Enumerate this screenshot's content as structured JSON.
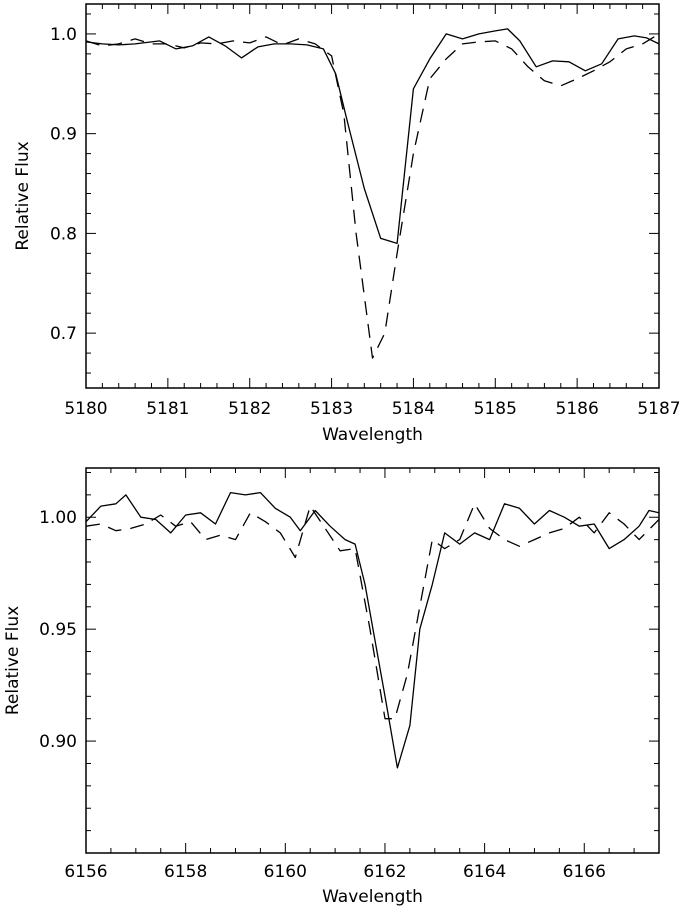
{
  "chart_data": [
    {
      "type": "line",
      "xlabel": "Wavelength",
      "ylabel": "Relative Flux",
      "xlim": [
        5180,
        5187
      ],
      "ylim": [
        0.645,
        1.03
      ],
      "xticks": [
        5180,
        5181,
        5182,
        5183,
        5184,
        5185,
        5186,
        5187
      ],
      "xtick_labels": [
        "5180",
        "5181",
        "5182",
        "5183",
        "5184",
        "5185",
        "5186",
        "5187"
      ],
      "yticks": [
        0.7,
        0.8,
        0.9,
        1.0
      ],
      "ytick_labels": [
        "0.7",
        "0.8",
        "0.9",
        "1.0"
      ],
      "x_minor_per_major": 5,
      "y_minor_per_major": 5,
      "series": [
        {
          "style": "solid",
          "x": [
            5180.0,
            5180.2,
            5180.4,
            5180.6,
            5180.9,
            5181.1,
            5181.3,
            5181.5,
            5181.7,
            5181.9,
            5182.1,
            5182.3,
            5182.5,
            5182.7,
            5182.9,
            5183.05,
            5183.2,
            5183.4,
            5183.6,
            5183.8,
            5184.0,
            5184.2,
            5184.4,
            5184.6,
            5184.8,
            5185.0,
            5185.15,
            5185.3,
            5185.5,
            5185.7,
            5185.9,
            5186.1,
            5186.3,
            5186.5,
            5186.7,
            5186.85,
            5187.0
          ],
          "y": [
            0.992,
            0.99,
            0.989,
            0.99,
            0.993,
            0.985,
            0.988,
            0.997,
            0.988,
            0.976,
            0.987,
            0.99,
            0.99,
            0.989,
            0.985,
            0.96,
            0.91,
            0.845,
            0.795,
            0.79,
            0.945,
            0.975,
            1.0,
            0.995,
            1.0,
            1.003,
            1.005,
            0.993,
            0.967,
            0.973,
            0.972,
            0.963,
            0.97,
            0.995,
            0.998,
            0.996,
            0.99
          ]
        },
        {
          "style": "dashed",
          "x": [
            5180.0,
            5180.2,
            5180.4,
            5180.6,
            5180.8,
            5181.0,
            5181.2,
            5181.4,
            5181.6,
            5181.8,
            5182.0,
            5182.2,
            5182.4,
            5182.6,
            5182.8,
            5183.0,
            5183.15,
            5183.3,
            5183.5,
            5183.65,
            5183.8,
            5184.0,
            5184.2,
            5184.4,
            5184.6,
            5184.8,
            5185.0,
            5185.2,
            5185.4,
            5185.6,
            5185.8,
            5186.0,
            5186.2,
            5186.4,
            5186.6,
            5186.8,
            5187.0
          ],
          "y": [
            0.993,
            0.988,
            0.99,
            0.995,
            0.99,
            0.99,
            0.986,
            0.991,
            0.99,
            0.993,
            0.991,
            0.997,
            0.989,
            0.995,
            0.99,
            0.978,
            0.92,
            0.8,
            0.675,
            0.7,
            0.78,
            0.88,
            0.955,
            0.975,
            0.99,
            0.992,
            0.993,
            0.985,
            0.967,
            0.953,
            0.948,
            0.955,
            0.963,
            0.972,
            0.985,
            0.99,
            1.0
          ]
        }
      ]
    },
    {
      "type": "line",
      "xlabel": "Wavelength",
      "ylabel": "Relative Flux",
      "xlim": [
        6156,
        6167.5
      ],
      "ylim": [
        0.85,
        1.022
      ],
      "xticks": [
        6156,
        6158,
        6160,
        6162,
        6164,
        6166
      ],
      "xtick_labels": [
        "6156",
        "6158",
        "6160",
        "6162",
        "6164",
        "6166"
      ],
      "yticks": [
        0.9,
        0.95,
        1.0
      ],
      "ytick_labels": [
        "0.90",
        "0.95",
        "1.00"
      ],
      "x_minor_per_major": 4,
      "y_minor_per_major": 5,
      "series": [
        {
          "style": "solid",
          "x": [
            6156.0,
            6156.3,
            6156.6,
            6156.8,
            6157.1,
            6157.4,
            6157.7,
            6158.0,
            6158.3,
            6158.6,
            6158.9,
            6159.2,
            6159.5,
            6159.8,
            6160.1,
            6160.3,
            6160.6,
            6160.9,
            6161.2,
            6161.4,
            6161.6,
            6161.8,
            6162.0,
            6162.25,
            6162.5,
            6162.7,
            6162.95,
            6163.2,
            6163.5,
            6163.8,
            6164.1,
            6164.4,
            6164.7,
            6165.0,
            6165.3,
            6165.6,
            6165.9,
            6166.2,
            6166.5,
            6166.8,
            6167.1,
            6167.3,
            6167.5
          ],
          "y": [
            0.998,
            1.005,
            1.006,
            1.01,
            1.0,
            0.999,
            0.993,
            1.001,
            1.002,
            0.997,
            1.011,
            1.01,
            1.011,
            1.004,
            1.0,
            0.994,
            1.003,
            0.996,
            0.99,
            0.988,
            0.97,
            0.945,
            0.92,
            0.888,
            0.907,
            0.95,
            0.97,
            0.993,
            0.988,
            0.993,
            0.99,
            1.006,
            1.004,
            0.997,
            1.003,
            1.0,
            0.996,
            0.997,
            0.986,
            0.99,
            0.996,
            1.003,
            1.002
          ]
        },
        {
          "style": "dashed",
          "x": [
            6156.0,
            6156.3,
            6156.6,
            6156.9,
            6157.2,
            6157.5,
            6157.8,
            6158.1,
            6158.4,
            6158.7,
            6159.0,
            6159.3,
            6159.6,
            6159.9,
            6160.2,
            6160.5,
            6160.8,
            6161.1,
            6161.4,
            6161.7,
            6162.0,
            6162.2,
            6162.45,
            6162.7,
            6162.95,
            6163.2,
            6163.5,
            6163.8,
            6164.1,
            6164.4,
            6164.7,
            6165.0,
            6165.3,
            6165.6,
            6165.9,
            6166.2,
            6166.5,
            6166.8,
            6167.1,
            6167.5
          ],
          "y": [
            0.996,
            0.997,
            0.994,
            0.995,
            0.997,
            1.001,
            0.996,
            0.998,
            0.99,
            0.992,
            0.99,
            1.002,
            0.998,
            0.993,
            0.982,
            1.005,
            0.995,
            0.985,
            0.986,
            0.95,
            0.91,
            0.91,
            0.93,
            0.96,
            0.99,
            0.986,
            0.99,
            1.006,
            0.995,
            0.99,
            0.987,
            0.99,
            0.993,
            0.995,
            1.0,
            0.993,
            1.002,
            0.997,
            0.99,
            0.999
          ]
        }
      ]
    }
  ]
}
